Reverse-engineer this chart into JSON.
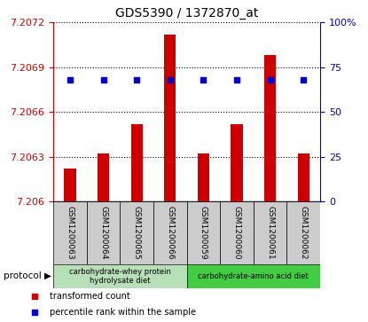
{
  "title": "GDS5390 / 1372870_at",
  "samples": [
    "GSM1200063",
    "GSM1200064",
    "GSM1200065",
    "GSM1200066",
    "GSM1200059",
    "GSM1200060",
    "GSM1200061",
    "GSM1200062"
  ],
  "bar_values": [
    7.20622,
    7.20632,
    7.20652,
    7.20712,
    7.20632,
    7.20652,
    7.20698,
    7.20632
  ],
  "percentile_values": [
    68,
    68,
    68,
    68,
    68,
    68,
    68,
    68
  ],
  "ylim_left": [
    7.206,
    7.2072
  ],
  "yticks_left": [
    7.206,
    7.2063,
    7.2066,
    7.2069,
    7.2072
  ],
  "ytick_labels_left": [
    "7.206",
    "7.2063",
    "7.2066",
    "7.2069",
    "7.2072"
  ],
  "ylim_right": [
    0,
    100
  ],
  "yticks_right": [
    0,
    25,
    50,
    75,
    100
  ],
  "ytick_labels_right": [
    "0",
    "25",
    "50",
    "75",
    "100%"
  ],
  "bar_color": "#cc0000",
  "dot_color": "#0000cc",
  "bar_baseline": 7.206,
  "bar_width": 0.35,
  "grid_linestyle": "dotted",
  "grid_color": "#000000",
  "group1_label": "carbohydrate-whey protein\nhydrolysate diet",
  "group2_label": "carbohydrate-amino acid diet",
  "group1_color": "#b8e0b8",
  "group2_color": "#44cc44",
  "protocol_label": "protocol ▶",
  "legend_bar_label": "transformed count",
  "legend_dot_label": "percentile rank within the sample",
  "left_axis_color": "#cc0000",
  "right_axis_color": "#0000cc",
  "bg_color_tick_area": "#cccccc",
  "title_fontsize": 10,
  "tick_fontsize": 8,
  "label_fontsize": 7,
  "bar_label_fontsize": 6.5
}
